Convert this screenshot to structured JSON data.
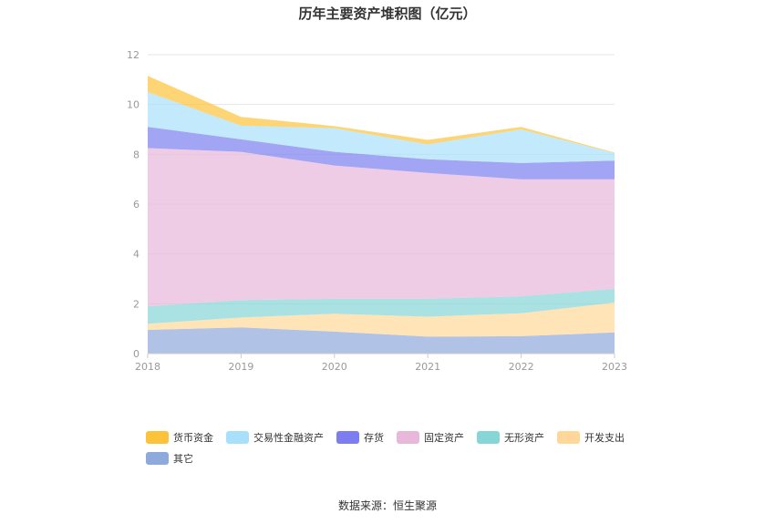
{
  "title": "历年主要资产堆积图（亿元）",
  "source": "数据来源：恒生聚源",
  "chart_data": {
    "type": "area",
    "stacked": true,
    "x": [
      "2018",
      "2019",
      "2020",
      "2021",
      "2022",
      "2023"
    ],
    "ylim": [
      0,
      12
    ],
    "yticks": [
      0,
      2,
      4,
      6,
      8,
      10,
      12
    ],
    "grid": true,
    "legend_position": "bottom-left",
    "series": [
      {
        "name": "其它",
        "color": "#8eaadc",
        "values": [
          0.95,
          1.05,
          0.88,
          0.68,
          0.7,
          0.85
        ]
      },
      {
        "name": "开发支出",
        "color": "#ffd899",
        "values": [
          0.25,
          0.4,
          0.72,
          0.8,
          0.92,
          1.2
        ]
      },
      {
        "name": "无形资产",
        "color": "#86d6d7",
        "values": [
          0.7,
          0.7,
          0.6,
          0.72,
          0.68,
          0.55
        ]
      },
      {
        "name": "固定资产",
        "color": "#e8b7da",
        "values": [
          6.35,
          5.95,
          5.35,
          5.05,
          4.7,
          4.4
        ]
      },
      {
        "name": "存货",
        "color": "#7b7df0",
        "values": [
          0.85,
          0.5,
          0.55,
          0.55,
          0.65,
          0.75
        ]
      },
      {
        "name": "交易性金融资产",
        "color": "#a8e0fb",
        "values": [
          1.4,
          0.55,
          0.95,
          0.6,
          1.35,
          0.3
        ]
      },
      {
        "name": "货币资金",
        "color": "#fcc33a",
        "values": [
          0.65,
          0.35,
          0.08,
          0.18,
          0.1,
          0.02
        ]
      }
    ]
  },
  "legend": [
    {
      "label": "货币资金",
      "color": "#fcc33a"
    },
    {
      "label": "交易性金融资产",
      "color": "#a8e0fb"
    },
    {
      "label": "存货",
      "color": "#7b7df0"
    },
    {
      "label": "固定资产",
      "color": "#e8b7da"
    },
    {
      "label": "无形资产",
      "color": "#86d6d7"
    },
    {
      "label": "开发支出",
      "color": "#ffd899"
    },
    {
      "label": "其它",
      "color": "#8eaadc"
    }
  ]
}
